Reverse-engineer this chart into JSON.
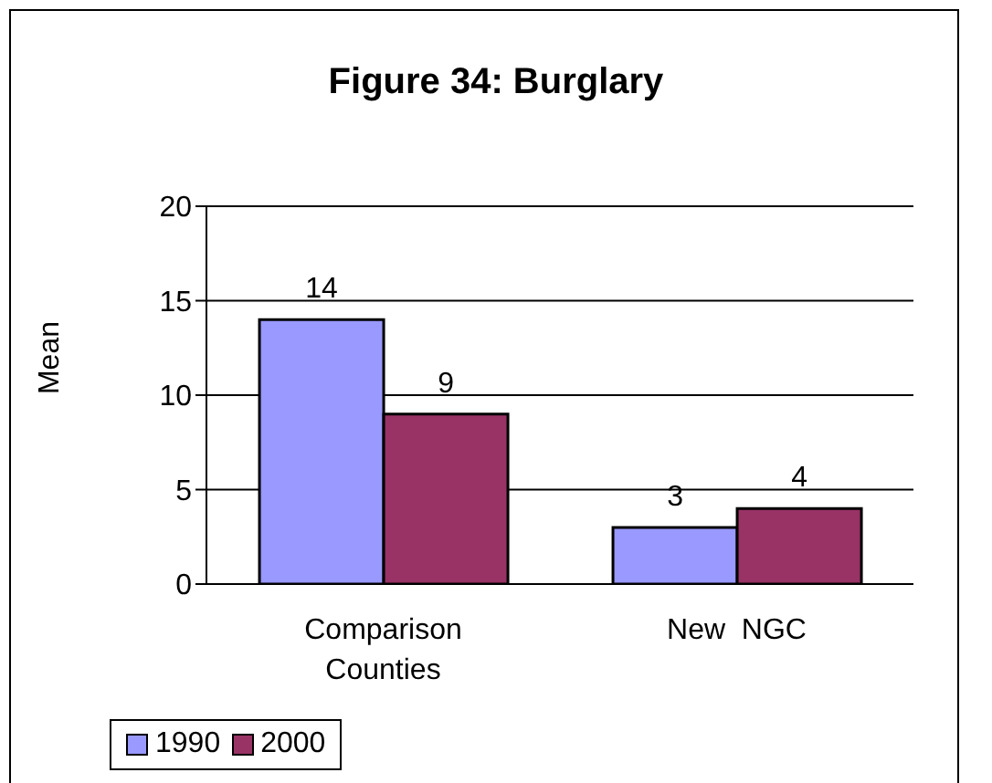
{
  "chart_data": {
    "type": "bar",
    "title": "Figure 34: Burglary",
    "ylabel": "Mean",
    "categories": [
      "Comparison Counties",
      "New  NGC"
    ],
    "series": [
      {
        "name": "1990",
        "color": "#9999ff",
        "values": [
          14,
          3
        ]
      },
      {
        "name": "2000",
        "color": "#993366",
        "values": [
          9,
          4
        ]
      }
    ],
    "ylim": [
      0,
      20
    ],
    "yticks": [
      0,
      5,
      10,
      15,
      20
    ],
    "grid": "y",
    "legend": "bottom",
    "data_labels": true
  }
}
